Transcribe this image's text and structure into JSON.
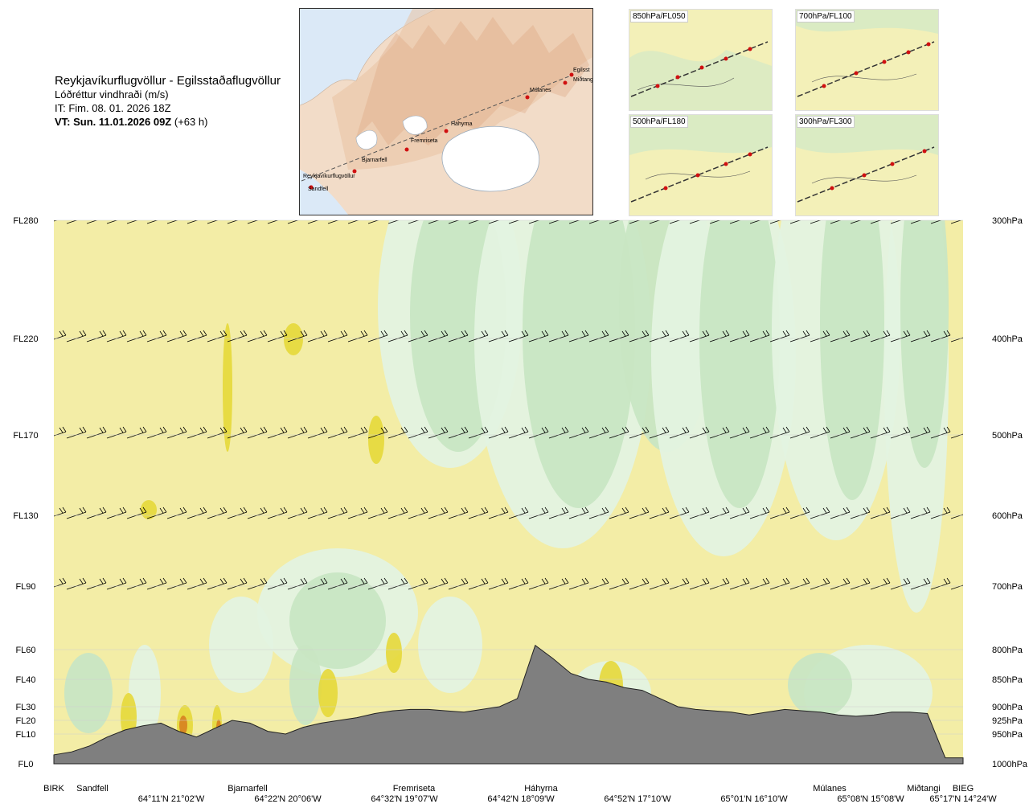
{
  "header": {
    "route": "Reykjavíkurflugvöllur - Egilsstaðaflugvöllur",
    "product": "Lóðréttur vindhraði (m/s)",
    "it": "IT: Fim. 08. 01. 2026 18Z",
    "vt_bold": "VT: Sun. 11.01.2026 09Z",
    "vt_rest": " (+63 h)"
  },
  "map": {
    "waypoints": [
      {
        "name": "Reykjavíkurflugvöllur"
      },
      {
        "name": "Sandfell"
      },
      {
        "name": "Bjarnarfell"
      },
      {
        "name": "Fremriseta"
      },
      {
        "name": "Háhyrna"
      },
      {
        "name": "Múlanes"
      },
      {
        "name": "Miðtangi"
      },
      {
        "name": "Egilsst"
      }
    ]
  },
  "panels": [
    {
      "label": "850hPa/FL050"
    },
    {
      "label": "700hPa/FL100"
    },
    {
      "label": "500hPa/FL180"
    },
    {
      "label": "300hPa/FL300"
    }
  ],
  "chart_data": {
    "type": "heatmap",
    "title": "Lóðréttur vindhraði (m/s)",
    "levels": [
      {
        "fl": "FL280",
        "hpa": "300hPa"
      },
      {
        "fl": "FL220",
        "hpa": "400hPa"
      },
      {
        "fl": "FL170",
        "hpa": "500hPa"
      },
      {
        "fl": "FL130",
        "hpa": "600hPa"
      },
      {
        "fl": "FL90",
        "hpa": "700hPa"
      },
      {
        "fl": "FL60",
        "hpa": "800hPa"
      },
      {
        "fl": "FL40",
        "hpa": "850hPa"
      },
      {
        "fl": "FL30",
        "hpa": "900hPa"
      },
      {
        "fl": "FL20",
        "hpa": "925hPa"
      },
      {
        "fl": "FL10",
        "hpa": "950hPa"
      },
      {
        "fl": "FL0",
        "hpa": "1000hPa"
      }
    ],
    "stations": [
      "BIRK",
      "Sandfell",
      "Bjarnarfell",
      "Fremriseta",
      "Háhyrna",
      "Múlanes",
      "Miðtangi",
      "BIEG"
    ],
    "coords": [
      "64°11'N 21°02'W",
      "64°22'N 20°06'W",
      "64°32'N 19°07'W",
      "64°42'N 18°09'W",
      "64°52'N 17°10'W",
      "65°01'N 16°10'W",
      "65°08'N 15°08'W",
      "65°17'N 14°24'W"
    ],
    "terrain_fl": [
      0.3,
      0.4,
      0.6,
      0.9,
      1.3,
      1.6,
      1.8,
      1.2,
      0.9,
      1.4,
      2.0,
      1.8,
      1.2,
      1.0,
      1.5,
      1.8,
      2.0,
      2.2,
      2.5,
      2.7,
      2.8,
      2.8,
      2.7,
      2.6,
      2.8,
      3.0,
      3.3,
      6.2,
      5.4,
      4.4,
      4.0,
      3.9,
      3.7,
      3.6,
      3.3,
      3.0,
      2.8,
      2.7,
      2.6,
      2.4,
      2.6,
      2.8,
      2.7,
      2.6,
      2.4,
      2.3,
      2.4,
      2.6,
      2.6,
      2.5,
      0.2,
      0.2
    ],
    "colors": {
      "positive": "#f3eda6",
      "strong_positive": "#e6d83a",
      "max_positive": "#d98a23",
      "weak_negative": "#e3f3e0",
      "negative": "#c8e6c3",
      "strong_negative": "#9fcc9f",
      "terrain": "#7f7f7f"
    }
  }
}
